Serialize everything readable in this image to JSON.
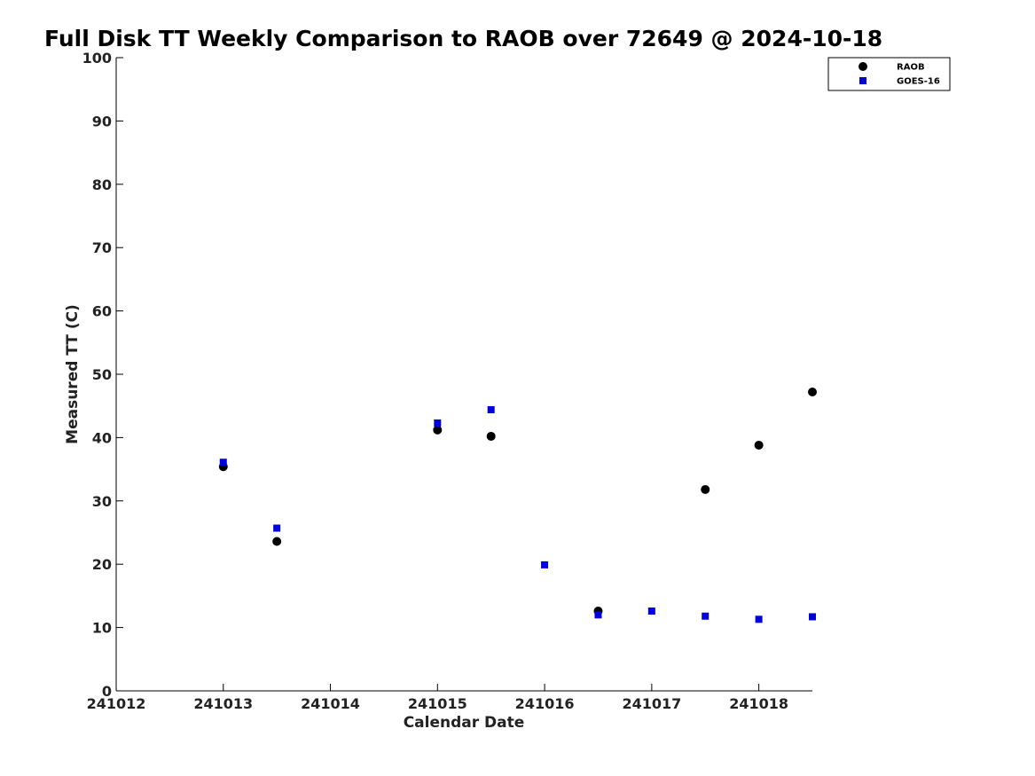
{
  "chart_data": {
    "type": "scatter",
    "title": "Full Disk TT Weekly Comparison to RAOB over 72649 @ 2024-10-18",
    "xlabel": "Calendar Date",
    "ylabel": "Measured TT (C)",
    "xlim": [
      241012,
      241018.5
    ],
    "ylim": [
      0,
      100
    ],
    "x_ticks": [
      241012,
      241013,
      241014,
      241015,
      241016,
      241017,
      241018
    ],
    "x_tick_labels": [
      "241012",
      "241013",
      "241014",
      "241015",
      "241016",
      "241017",
      "241018"
    ],
    "y_ticks": [
      0,
      10,
      20,
      30,
      40,
      50,
      60,
      70,
      80,
      90,
      100
    ],
    "y_tick_labels": [
      "0",
      "10",
      "20",
      "30",
      "40",
      "50",
      "60",
      "70",
      "80",
      "90",
      "100"
    ],
    "grid": false,
    "legend_position": "top-right",
    "series": [
      {
        "name": "RAOB",
        "marker": "circle",
        "color": "#000000",
        "points": [
          {
            "x": 241013.0,
            "y": 35.4
          },
          {
            "x": 241013.5,
            "y": 23.6
          },
          {
            "x": 241015.0,
            "y": 41.2
          },
          {
            "x": 241015.5,
            "y": 40.2
          },
          {
            "x": 241016.5,
            "y": 12.6
          },
          {
            "x": 241017.5,
            "y": 31.8
          },
          {
            "x": 241018.0,
            "y": 38.8
          },
          {
            "x": 241018.5,
            "y": 47.2
          }
        ]
      },
      {
        "name": "GOES-16",
        "marker": "square",
        "color": "#0000dd",
        "points": [
          {
            "x": 241013.0,
            "y": 36.1
          },
          {
            "x": 241013.5,
            "y": 25.7
          },
          {
            "x": 241015.0,
            "y": 42.3
          },
          {
            "x": 241015.5,
            "y": 44.4
          },
          {
            "x": 241016.0,
            "y": 19.9
          },
          {
            "x": 241016.5,
            "y": 12.0
          },
          {
            "x": 241017.0,
            "y": 12.6
          },
          {
            "x": 241017.5,
            "y": 11.8
          },
          {
            "x": 241018.0,
            "y": 11.3
          },
          {
            "x": 241018.5,
            "y": 11.7
          }
        ]
      }
    ]
  }
}
